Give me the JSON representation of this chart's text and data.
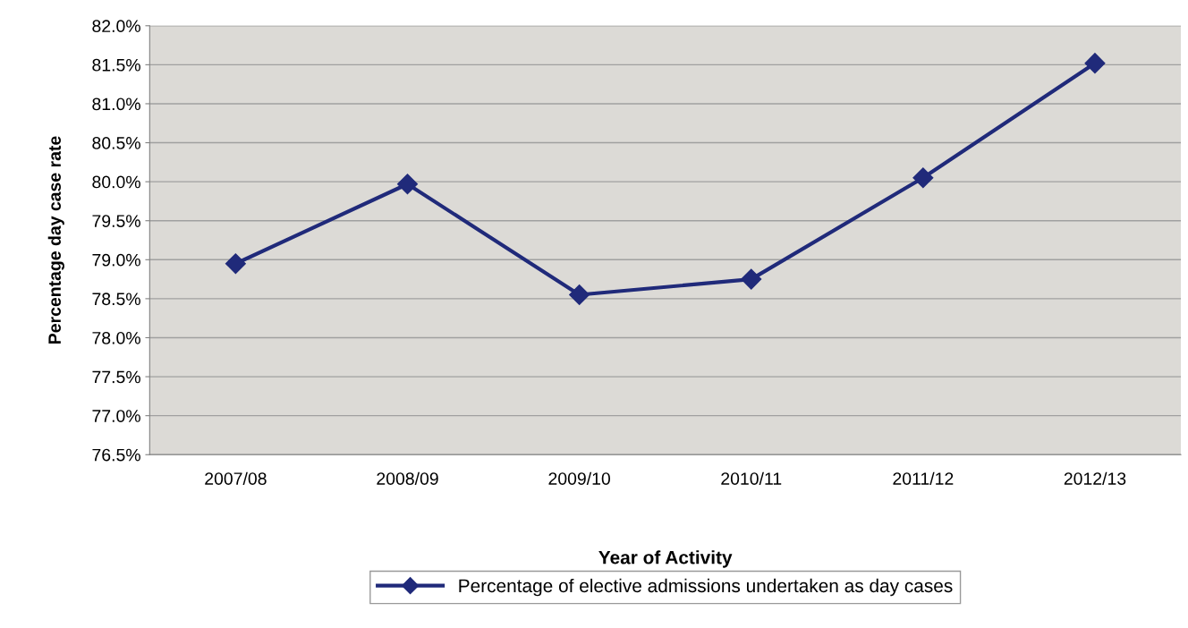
{
  "chart_data": {
    "type": "line",
    "xlabel": "Year of Activity",
    "ylabel": "Percentage day case rate",
    "categories": [
      "2007/08",
      "2008/09",
      "2009/10",
      "2010/11",
      "2011/12",
      "2012/13"
    ],
    "series": [
      {
        "name": "Percentage of elective admissions undertaken as day cases",
        "color": "#202a7a",
        "values": [
          78.95,
          79.97,
          78.55,
          78.75,
          80.05,
          81.52
        ]
      }
    ],
    "ylim": [
      76.5,
      82.0
    ],
    "yticks": [
      {
        "value": 76.5,
        "label": "76.5%"
      },
      {
        "value": 77.0,
        "label": "77.0%"
      },
      {
        "value": 77.5,
        "label": "77.5%"
      },
      {
        "value": 78.0,
        "label": "78.0%"
      },
      {
        "value": 78.5,
        "label": "78.5%"
      },
      {
        "value": 79.0,
        "label": "79.0%"
      },
      {
        "value": 79.5,
        "label": "79.5%"
      },
      {
        "value": 80.0,
        "label": "80.0%"
      },
      {
        "value": 80.5,
        "label": "80.5%"
      },
      {
        "value": 81.0,
        "label": "81.0%"
      },
      {
        "value": 81.5,
        "label": "81.5%"
      },
      {
        "value": 82.0,
        "label": "82.0%"
      }
    ],
    "grid": "y",
    "legend": "bottom",
    "marker": "diamond",
    "line_style": "solid"
  }
}
